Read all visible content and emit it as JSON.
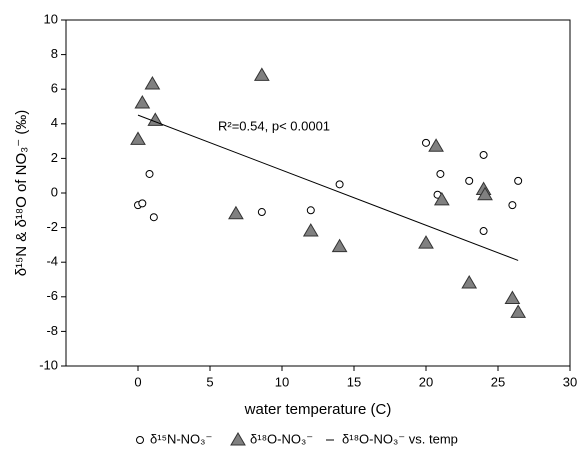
{
  "chart_data": {
    "type": "scatter",
    "x_label": "water temperature (C)",
    "y_label": "δ¹⁵N & δ¹⁸O of NO₃⁻ (‰)",
    "annotation": "R²=0.54, p< 0.0001",
    "xlim": [
      -5,
      30
    ],
    "xticks": [
      0,
      5,
      10,
      15,
      20,
      25,
      30
    ],
    "ylim": [
      -10,
      10
    ],
    "yticks": [
      -10,
      -8,
      -6,
      -4,
      -2,
      0,
      2,
      4,
      6,
      8,
      10
    ],
    "grid": false,
    "series": [
      {
        "name": "δ¹⁵N-NO₃⁻",
        "type": "scatter",
        "marker": "circle",
        "color": "#ffffff",
        "x": [
          0,
          0.3,
          0.8,
          1.1,
          8.6,
          12,
          14,
          20,
          20.8,
          21,
          23,
          24,
          24,
          26,
          26.4
        ],
        "values": [
          -0.7,
          -0.6,
          1.1,
          -1.4,
          -1.1,
          -1.0,
          0.5,
          2.9,
          -0.1,
          1.1,
          0.7,
          2.2,
          -2.2,
          -0.7,
          0.7
        ]
      },
      {
        "name": "δ¹⁸O-NO₃⁻",
        "type": "scatter",
        "marker": "triangle",
        "color": "#808080",
        "x": [
          0,
          0.3,
          1,
          1.2,
          6.8,
          8.6,
          12,
          14,
          20,
          20.7,
          21.1,
          23,
          24,
          24.1,
          26,
          26.4
        ],
        "values": [
          3.1,
          5.2,
          6.3,
          4.2,
          -1.2,
          6.8,
          -2.2,
          -3.1,
          -2.9,
          2.7,
          -0.4,
          -5.2,
          0.2,
          -0.1,
          -6.1,
          -6.9
        ]
      },
      {
        "name": "δ¹⁸O-NO₃⁻ vs. temp",
        "type": "line",
        "color": "#000000",
        "x": [
          0,
          26.4
        ],
        "values": [
          4.5,
          -3.9
        ]
      }
    ]
  }
}
